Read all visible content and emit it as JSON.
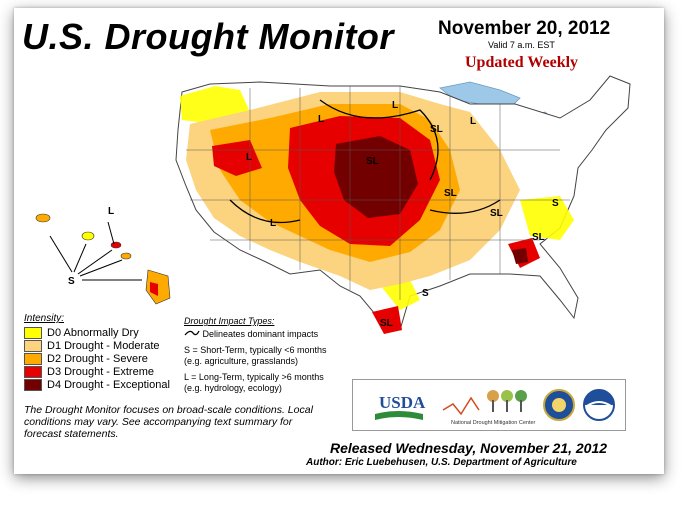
{
  "header": {
    "title": "U.S. Drought Monitor",
    "date": "November 20, 2012",
    "valid": "Valid 7 a.m. EST",
    "updated": "Updated Weekly"
  },
  "legend": {
    "heading": "Intensity:",
    "items": [
      {
        "label": "D0 Abnormally Dry",
        "color": "#ffff00"
      },
      {
        "label": "D1 Drought - Moderate",
        "color": "#fcd37f"
      },
      {
        "label": "D2 Drought - Severe",
        "color": "#ffaa00"
      },
      {
        "label": "D3 Drought - Extreme",
        "color": "#e60000"
      },
      {
        "label": "D4 Drought - Exceptional",
        "color": "#730000"
      }
    ]
  },
  "impact": {
    "heading": "Drought Impact Types:",
    "delineates": "Delineates dominant impacts",
    "short_term": "S = Short-Term, typically <6 months",
    "short_term_eg": "(e.g. agriculture, grasslands)",
    "long_term": "L = Long-Term, typically >6 months",
    "long_term_eg": "(e.g. hydrology, ecology)"
  },
  "disclaimer": "The Drought Monitor focuses on broad-scale conditions. Local conditions may vary. See accompanying text summary for forecast statements.",
  "logos": {
    "usda": "USDA",
    "ndmc": "National Drought Mitigation Center"
  },
  "footer": {
    "released": "Released Wednesday, November 21, 2012",
    "author": "Author: Eric Luebehusen, U.S. Department of Agriculture"
  },
  "map_labels": {
    "L": "L",
    "S": "S",
    "SL": "SL"
  }
}
